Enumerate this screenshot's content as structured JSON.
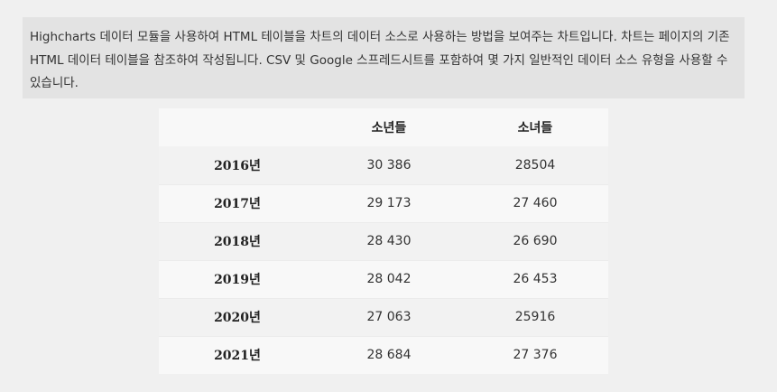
{
  "description": "Highcharts 데이터 모듈을 사용하여 HTML 테이블을 차트의 데이터 소스로 사용하는 방법을 보여주는 차트입니다. 차트는 페이지의 기존 HTML 데이터 테이블을 참조하여 작성됩니다. CSV 및 Google 스프레드시트를 포함하여 몇 가지 일반적인 데이터 소스 유형을 사용할 수 있습니다.",
  "table": {
    "headers": [
      "",
      "소년들",
      "소녀들"
    ],
    "rows": [
      {
        "year": "2016년",
        "boys": "30 386",
        "girls": "28504"
      },
      {
        "year": "2017년",
        "boys": "29 173",
        "girls": "27 460"
      },
      {
        "year": "2018년",
        "boys": "28 430",
        "girls": "26 690"
      },
      {
        "year": "2019년",
        "boys": "28 042",
        "girls": "26 453"
      },
      {
        "year": "2020년",
        "boys": "27 063",
        "girls": "25916"
      },
      {
        "year": "2021년",
        "boys": "28 684",
        "girls": "27 376"
      }
    ]
  }
}
